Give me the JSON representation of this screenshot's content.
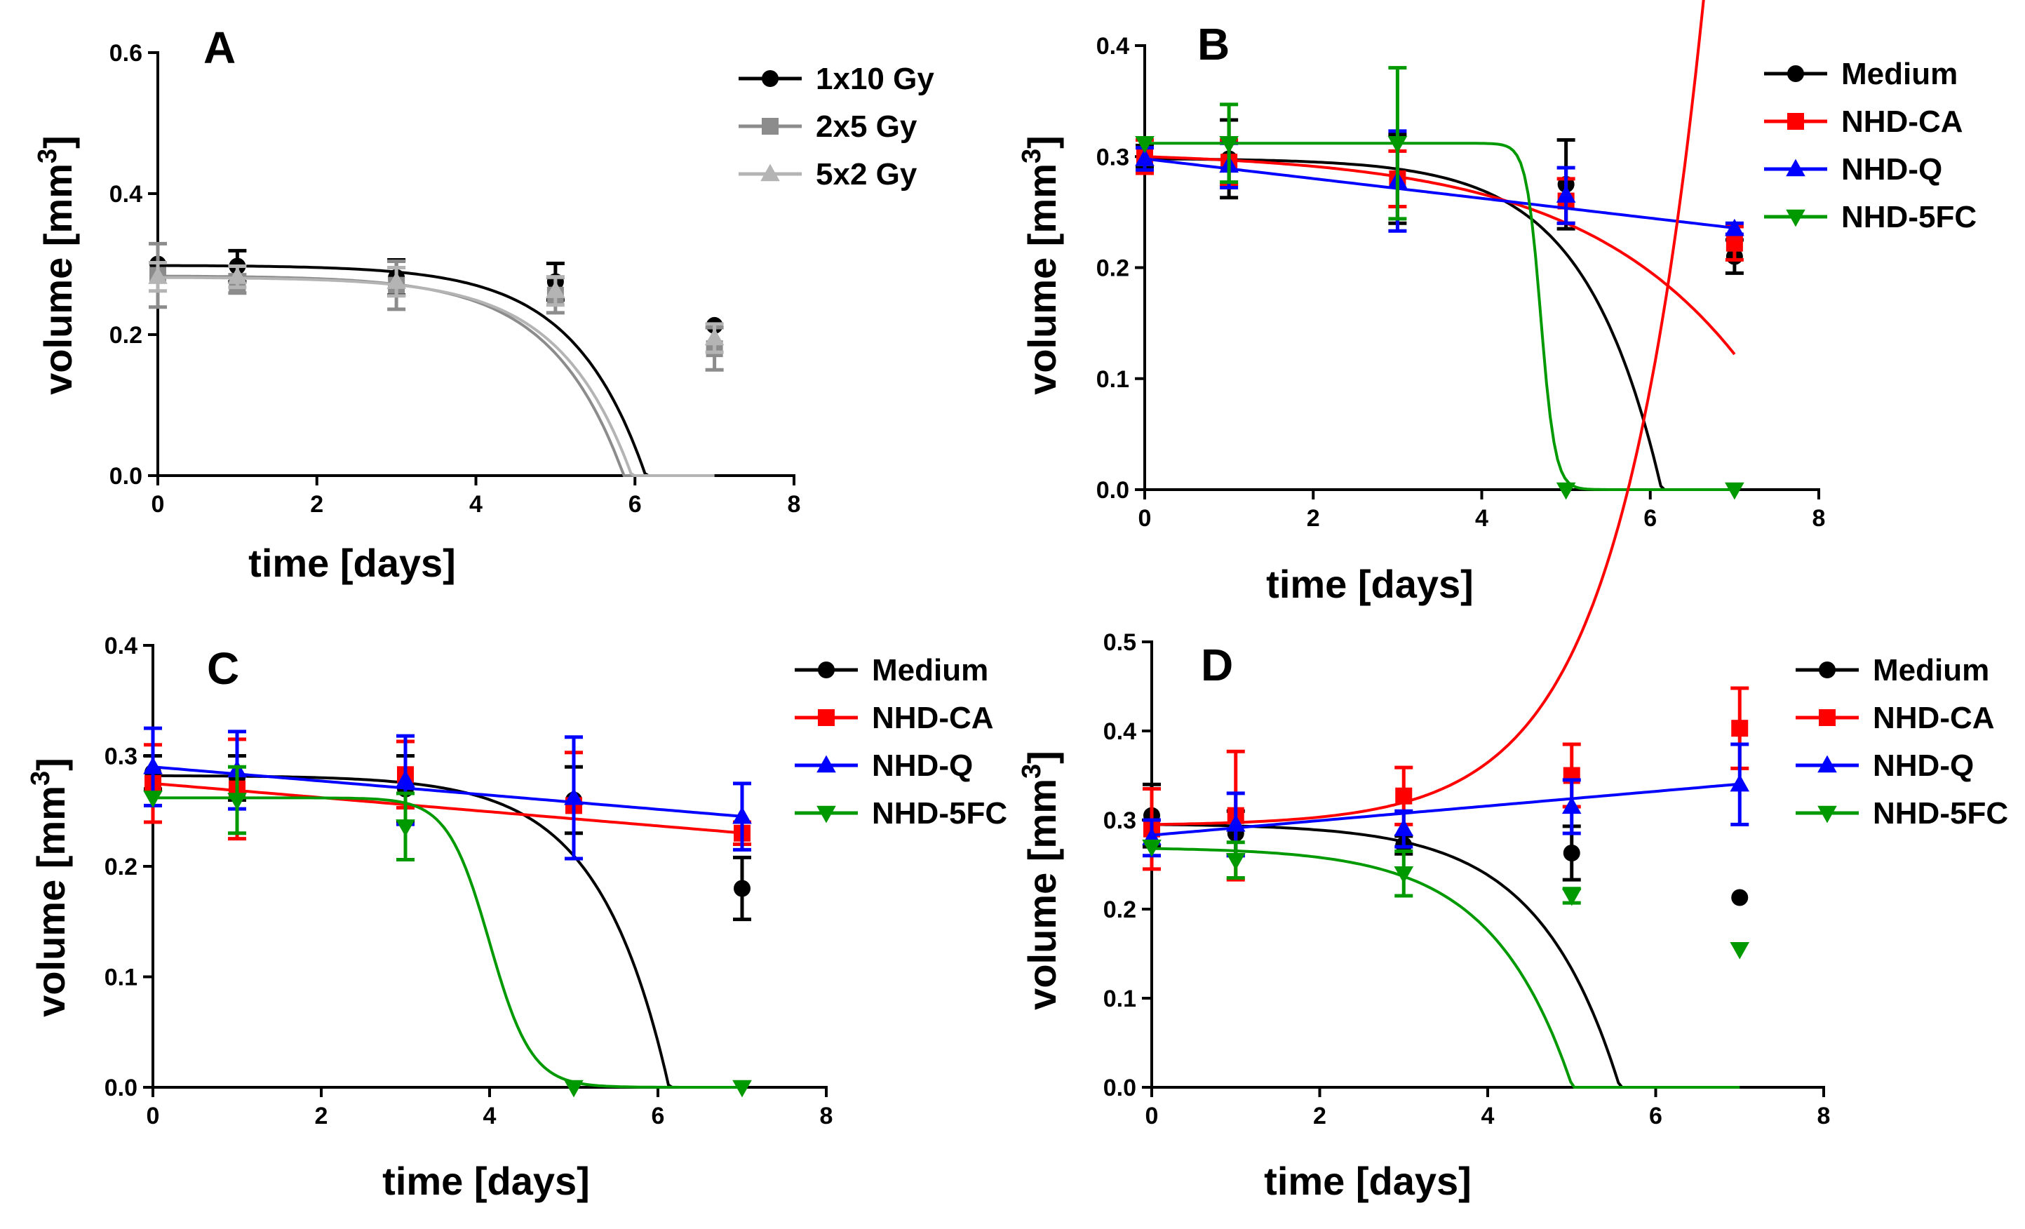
{
  "figure": {
    "panel_count": 4
  },
  "chart_data": [
    {
      "type": "line",
      "panel": "A",
      "xlabel": "time [days]",
      "ylabel": "volume [mm³]",
      "xlim": [
        0,
        8
      ],
      "ylim": [
        0,
        0.6
      ],
      "xticks": [
        0,
        2,
        4,
        6,
        8
      ],
      "xtick_labels": [
        "0",
        "2",
        "4",
        "6",
        "8"
      ],
      "yticks": [
        0,
        0.2,
        0.4,
        0.6
      ],
      "ytick_labels": [
        "0.0",
        "0.2",
        "0.4",
        "0.6"
      ],
      "legend_position": "top-right",
      "series": [
        {
          "name": "1x10 Gy",
          "color": "#000000",
          "marker": "circle",
          "x": [
            0,
            1,
            3,
            5,
            7
          ],
          "y": [
            0.3,
            0.297,
            0.281,
            0.275,
            0.213
          ],
          "err": [
            0,
            0.022,
            0.025,
            0.026,
            0
          ],
          "curve": "exp",
          "curve_x0": 0,
          "curve_x1": 7,
          "curve_params": [
            0.298,
            0.00035,
            1.1
          ]
        },
        {
          "name": "2x5 Gy",
          "color": "#8c8c8c",
          "marker": "square",
          "x": [
            0,
            1,
            3,
            5,
            7
          ],
          "y": [
            0.284,
            0.272,
            0.27,
            0.256,
            0.18
          ],
          "err": [
            0.045,
            0.013,
            0.034,
            0.025,
            0.03
          ],
          "curve": "exp",
          "curve_x0": 0,
          "curve_x1": 7,
          "curve_params": [
            0.283,
            0.00045,
            1.1
          ]
        },
        {
          "name": "5x2 Gy",
          "color": "#b4b4b4",
          "marker": "triangle-up",
          "x": [
            0,
            1,
            3,
            5,
            7
          ],
          "y": [
            0.282,
            0.282,
            0.275,
            0.262,
            0.195
          ],
          "err": [
            0.02,
            0.015,
            0.02,
            0.02,
            0.02
          ],
          "curve": "exp",
          "curve_x0": 0,
          "curve_x1": 7,
          "curve_params": [
            0.281,
            0.0004,
            1.1
          ]
        }
      ]
    },
    {
      "type": "line",
      "panel": "B",
      "xlabel": "time [days]",
      "ylabel": "volume [mm³]",
      "xlim": [
        0,
        8
      ],
      "ylim": [
        0,
        0.4
      ],
      "xticks": [
        0,
        2,
        4,
        6,
        8
      ],
      "xtick_labels": [
        "0",
        "2",
        "4",
        "6",
        "8"
      ],
      "yticks": [
        0,
        0.1,
        0.2,
        0.3,
        0.4
      ],
      "ytick_labels": [
        "0.0",
        "0.1",
        "0.2",
        "0.3",
        "0.4"
      ],
      "legend_position": "top-right",
      "series": [
        {
          "name": "Medium",
          "color": "#000000",
          "marker": "circle",
          "x": [
            0,
            1,
            3,
            5,
            7
          ],
          "y": [
            0.3,
            0.298,
            0.28,
            0.275,
            0.21
          ],
          "err": [
            0.01,
            0.035,
            0.04,
            0.04,
            0.015
          ],
          "curve": "exp",
          "curve_x0": 0,
          "curve_x1": 7,
          "curve_params": [
            0.298,
            0.00035,
            1.1
          ]
        },
        {
          "name": "NHD-CA",
          "color": "#ff0000",
          "marker": "square",
          "x": [
            0,
            1,
            3,
            5,
            7
          ],
          "y": [
            0.3,
            0.295,
            0.28,
            0.26,
            0.222
          ],
          "err": [
            0.015,
            0.02,
            0.025,
            0.02,
            0.015
          ],
          "curve": "exp",
          "curve_x0": 0,
          "curve_x1": 7,
          "curve_params": [
            0.3,
            0.0048,
            0.52
          ]
        },
        {
          "name": "NHD-Q",
          "color": "#0000ff",
          "marker": "triangle-up",
          "x": [
            0,
            1,
            3,
            5,
            7
          ],
          "y": [
            0.298,
            0.292,
            0.278,
            0.265,
            0.235
          ],
          "err": [
            0.01,
            0.02,
            0.045,
            0.025,
            0.005
          ],
          "curve": "linear",
          "curve_x0": 0,
          "curve_x1": 7,
          "curve_params": [
            0.298,
            -0.0089
          ]
        },
        {
          "name": "NHD-5FC",
          "color": "#009900",
          "marker": "triangle-down",
          "x": [
            0,
            1,
            3,
            5,
            7
          ],
          "y": [
            0.312,
            0.312,
            0.312,
            0.0,
            0.0
          ],
          "err": [
            0,
            0.035,
            0.068,
            0,
            0
          ],
          "curve": "sigmoid",
          "curve_x0": 0,
          "curve_x1": 7,
          "curve_params": [
            0.312,
            4.7,
            0.085
          ]
        }
      ]
    },
    {
      "type": "line",
      "panel": "C",
      "xlabel": "time [days]",
      "ylabel": "volume [mm³]",
      "xlim": [
        0,
        8
      ],
      "ylim": [
        0,
        0.4
      ],
      "xticks": [
        0,
        2,
        4,
        6,
        8
      ],
      "xtick_labels": [
        "0",
        "2",
        "4",
        "6",
        "8"
      ],
      "yticks": [
        0,
        0.1,
        0.2,
        0.3,
        0.4
      ],
      "ytick_labels": [
        "0.0",
        "0.1",
        "0.2",
        "0.3",
        "0.4"
      ],
      "legend_position": "top-right",
      "series": [
        {
          "name": "Medium",
          "color": "#000000",
          "marker": "circle",
          "x": [
            0,
            1,
            3,
            5,
            7
          ],
          "y": [
            0.285,
            0.28,
            0.27,
            0.26,
            0.18
          ],
          "err": [
            0.015,
            0.02,
            0.03,
            0.03,
            0.028
          ],
          "curve": "exp",
          "curve_x0": 0,
          "curve_x1": 7,
          "curve_params": [
            0.282,
            0.00018,
            1.2
          ]
        },
        {
          "name": "NHD-CA",
          "color": "#ff0000",
          "marker": "square",
          "x": [
            0,
            1,
            3,
            5,
            7
          ],
          "y": [
            0.275,
            0.27,
            0.283,
            0.255,
            0.23
          ],
          "err": [
            0.035,
            0.045,
            0.03,
            0.048,
            0.01
          ],
          "curve": "linear",
          "curve_x0": 0,
          "curve_x1": 7,
          "curve_params": [
            0.275,
            -0.0064
          ]
        },
        {
          "name": "NHD-Q",
          "color": "#0000ff",
          "marker": "triangle-up",
          "x": [
            0,
            1,
            3,
            5,
            7
          ],
          "y": [
            0.29,
            0.287,
            0.278,
            0.262,
            0.245
          ],
          "err": [
            0.035,
            0.035,
            0.04,
            0.055,
            0.03
          ],
          "curve": "linear",
          "curve_x0": 0,
          "curve_x1": 7,
          "curve_params": [
            0.29,
            -0.0064
          ]
        },
        {
          "name": "NHD-5FC",
          "color": "#009900",
          "marker": "triangle-down",
          "x": [
            0,
            1,
            3,
            5,
            7
          ],
          "y": [
            0.262,
            0.26,
            0.236,
            0.0,
            0.0
          ],
          "err": [
            0,
            0.03,
            0.03,
            0,
            0
          ],
          "curve": "sigmoid",
          "curve_x0": 0,
          "curve_x1": 7,
          "curve_params": [
            0.262,
            4.0,
            0.25
          ]
        }
      ]
    },
    {
      "type": "line",
      "panel": "D",
      "xlabel": "time [days]",
      "ylabel": "volume [mm³]",
      "xlim": [
        0,
        8
      ],
      "ylim": [
        0,
        0.5
      ],
      "xticks": [
        0,
        2,
        4,
        6,
        8
      ],
      "xtick_labels": [
        "0",
        "2",
        "4",
        "6",
        "8"
      ],
      "yticks": [
        0,
        0.1,
        0.2,
        0.3,
        0.4,
        0.5
      ],
      "ytick_labels": [
        "0.0",
        "0.1",
        "0.2",
        "0.3",
        "0.4",
        "0.5"
      ],
      "legend_position": "top-right",
      "series": [
        {
          "name": "Medium",
          "color": "#000000",
          "marker": "circle",
          "x": [
            0,
            1,
            3,
            5,
            7
          ],
          "y": [
            0.305,
            0.285,
            0.272,
            0.263,
            0.213
          ],
          "err": [
            0.035,
            0.025,
            0.01,
            0.03,
            0
          ],
          "curve": "exp",
          "curve_x0": 0,
          "curve_x1": 7,
          "curve_params": [
            0.295,
            0.0009,
            1.04
          ]
        },
        {
          "name": "NHD-CA",
          "color": "#ff0000",
          "marker": "square",
          "x": [
            0,
            1,
            3,
            5,
            7
          ],
          "y": [
            0.29,
            0.305,
            0.327,
            0.35,
            0.403
          ],
          "err": [
            0.045,
            0.072,
            0.032,
            0.035,
            0.045
          ],
          "curve": "exp",
          "curve_x0": 0,
          "curve_x1": 7,
          "curve_params": [
            0.295,
            -0.0013,
            1.0
          ]
        },
        {
          "name": "NHD-Q",
          "color": "#0000ff",
          "marker": "triangle-up",
          "x": [
            0,
            1,
            3,
            5,
            7
          ],
          "y": [
            0.28,
            0.295,
            0.29,
            0.315,
            0.34
          ],
          "err": [
            0.02,
            0.035,
            0.02,
            0.03,
            0.045
          ],
          "curve": "linear",
          "curve_x0": 0,
          "curve_x1": 7,
          "curve_params": [
            0.283,
            0.0082
          ]
        },
        {
          "name": "NHD-5FC",
          "color": "#009900",
          "marker": "triangle-down",
          "x": [
            0,
            1,
            3,
            5,
            7
          ],
          "y": [
            0.27,
            0.255,
            0.24,
            0.215,
            0.155
          ],
          "err": [
            0,
            0.02,
            0.025,
            0.008,
            0
          ],
          "curve": "exp",
          "curve_x0": 0,
          "curve_x1": 7,
          "curve_params": [
            0.268,
            0.0014,
            1.05
          ]
        }
      ]
    }
  ]
}
